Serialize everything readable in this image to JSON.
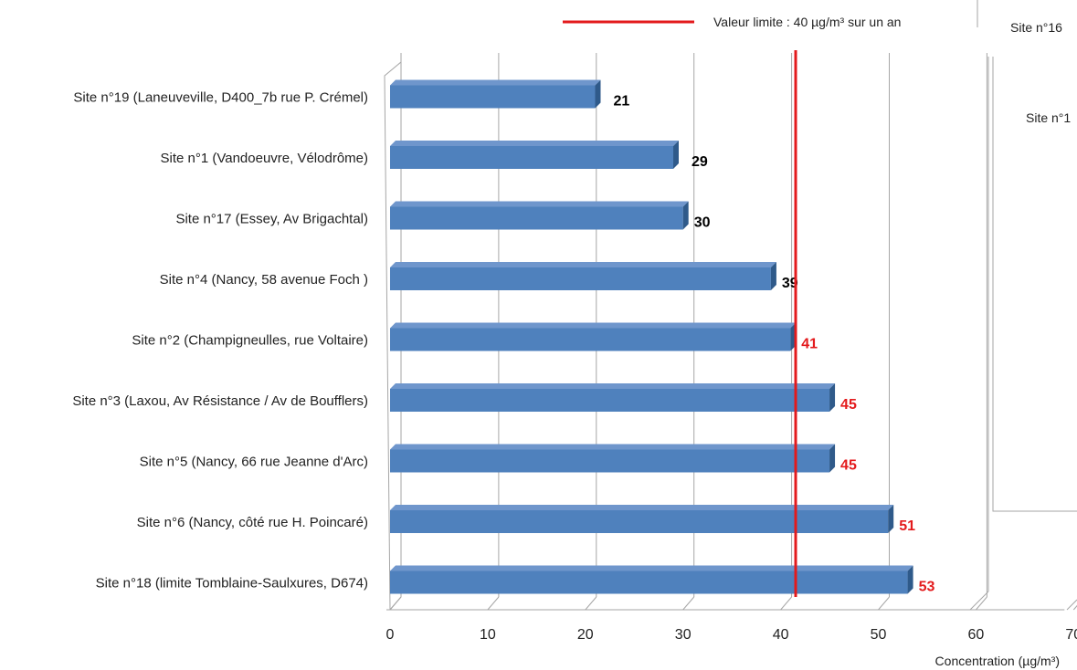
{
  "chart_data": {
    "type": "bar",
    "orientation": "horizontal",
    "style": "3d",
    "categories": [
      "Site n°19 (Laneuveville, D400_7b rue P. Crémel)",
      "Site n°1 (Vandoeuvre, Vélodrôme)",
      "Site n°17 (Essey, Av Brigachtal)",
      "Site n°4 (Nancy, 58 avenue Foch )",
      "Site n°2 (Champigneulles, rue Voltaire)",
      "Site n°3 (Laxou, Av Résistance / Av de Boufflers)",
      "Site n°5 (Nancy, 66 rue Jeanne d'Arc)",
      "Site n°6 (Nancy, côté rue H. Poincaré)",
      "Site n°18 (limite Tomblaine-Saulxures, D674)"
    ],
    "values": [
      21,
      29,
      30,
      39,
      41,
      45,
      45,
      51,
      53
    ],
    "data_labels": [
      "21",
      "29",
      "30",
      "39",
      "41",
      "45",
      "45",
      "51",
      "53"
    ],
    "xlim": [
      0,
      70
    ],
    "xticks": [
      "0",
      "10",
      "20",
      "30",
      "40",
      "50",
      "60",
      "70"
    ],
    "xlabel": "Concentration (µg/m³)",
    "grid": true,
    "threshold": {
      "value": 40,
      "label": "Valeur limite : 40 µg/m³ sur un an",
      "color": "#e31a1c"
    },
    "bar_color": "#4f81bd",
    "above_limit_label_color": "#e31a1c",
    "below_limit_label_color": "#000000",
    "legend_position": "top-right",
    "secondary_panel_labels": [
      "Site n°16",
      "Site n°1"
    ]
  }
}
